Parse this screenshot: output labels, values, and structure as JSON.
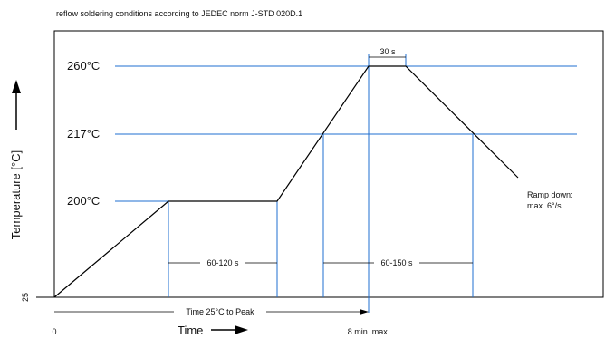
{
  "caption": "reflow soldering conditions according to JEDEC norm J-STD 020D.1",
  "temperature_levels": [
    {
      "label": "260°C",
      "value": 260
    },
    {
      "label": "217°C",
      "value": 217
    },
    {
      "label": "200°C",
      "value": 200
    }
  ],
  "y_axis": {
    "title": "Temperature [°C]",
    "base_label": "25"
  },
  "x_axis": {
    "title": "Time",
    "origin_label": "0",
    "end_label": "8 min. max."
  },
  "intervals": {
    "soak": "60-120 s",
    "liquidus": "60-150 s",
    "peak": "30 s",
    "time_to_peak": "Time 25°C to Peak"
  },
  "annotations": {
    "ramp_down_line1": "Ramp down:",
    "ramp_down_line2": "max. 6°/s"
  },
  "colors": {
    "frame": "#000000",
    "profile": "#000000",
    "guides": "#1f6fd1",
    "text": "#111111"
  }
}
